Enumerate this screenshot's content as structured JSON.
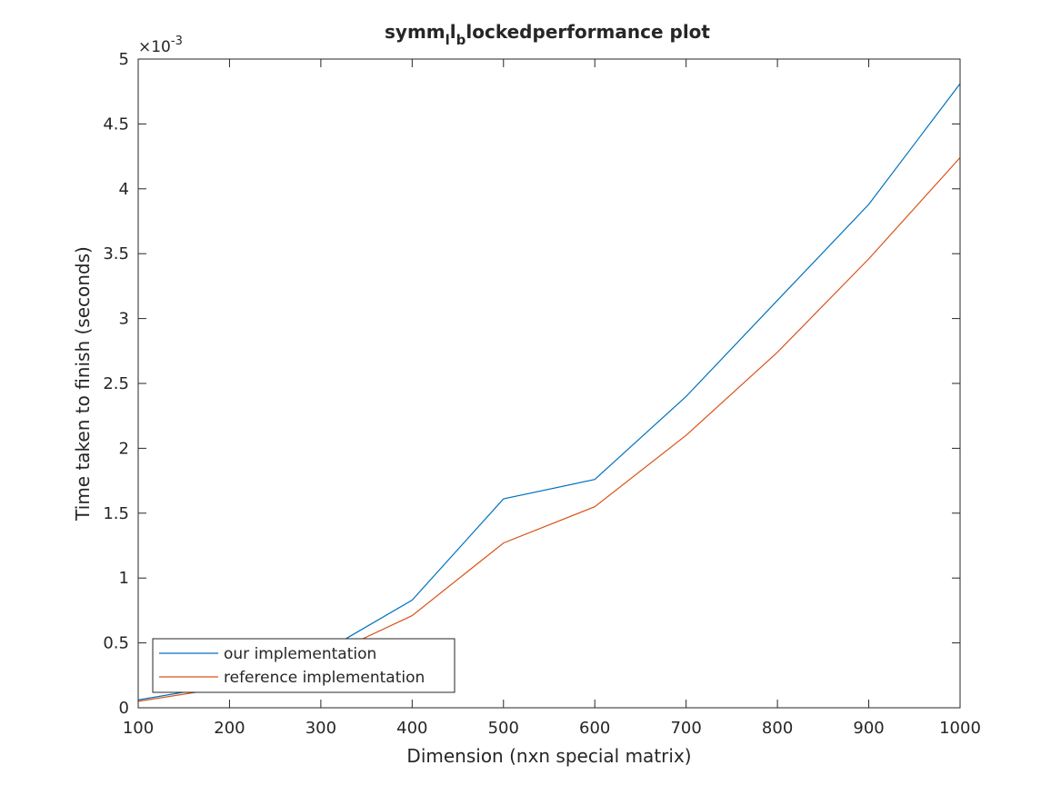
{
  "chart_data": {
    "type": "line",
    "title_parts": {
      "a": "symm",
      "sub1": "l",
      "b": "l",
      "sub2": "b",
      "c": "lockedperformance plot"
    },
    "xlabel": "Dimension (nxn special matrix)",
    "ylabel": "Time taken to finish (seconds)",
    "y_exponent_label": "×10",
    "y_exponent": "-3",
    "xlim": [
      100,
      1000
    ],
    "ylim": [
      0,
      5
    ],
    "y_scale_note": "values shown in units of 10^-3",
    "x_ticks": [
      "100",
      "200",
      "300",
      "400",
      "500",
      "600",
      "700",
      "800",
      "900",
      "1000"
    ],
    "y_ticks": [
      "0",
      "0.5",
      "1",
      "1.5",
      "2",
      "2.5",
      "3",
      "3.5",
      "4",
      "4.5",
      "5"
    ],
    "grid": false,
    "legend_position": "bottom-left",
    "x": [
      100,
      200,
      300,
      400,
      500,
      600,
      700,
      800,
      900,
      1000
    ],
    "series": [
      {
        "name": "our implementation",
        "color": "#0072bd",
        "values": [
          0.06,
          0.18,
          0.42,
          0.83,
          1.61,
          1.76,
          2.4,
          3.14,
          3.88,
          4.81
        ]
      },
      {
        "name": "reference implementation",
        "color": "#d95319",
        "values": [
          0.05,
          0.16,
          0.38,
          0.71,
          1.27,
          1.55,
          2.1,
          2.74,
          3.46,
          4.24
        ]
      }
    ]
  }
}
